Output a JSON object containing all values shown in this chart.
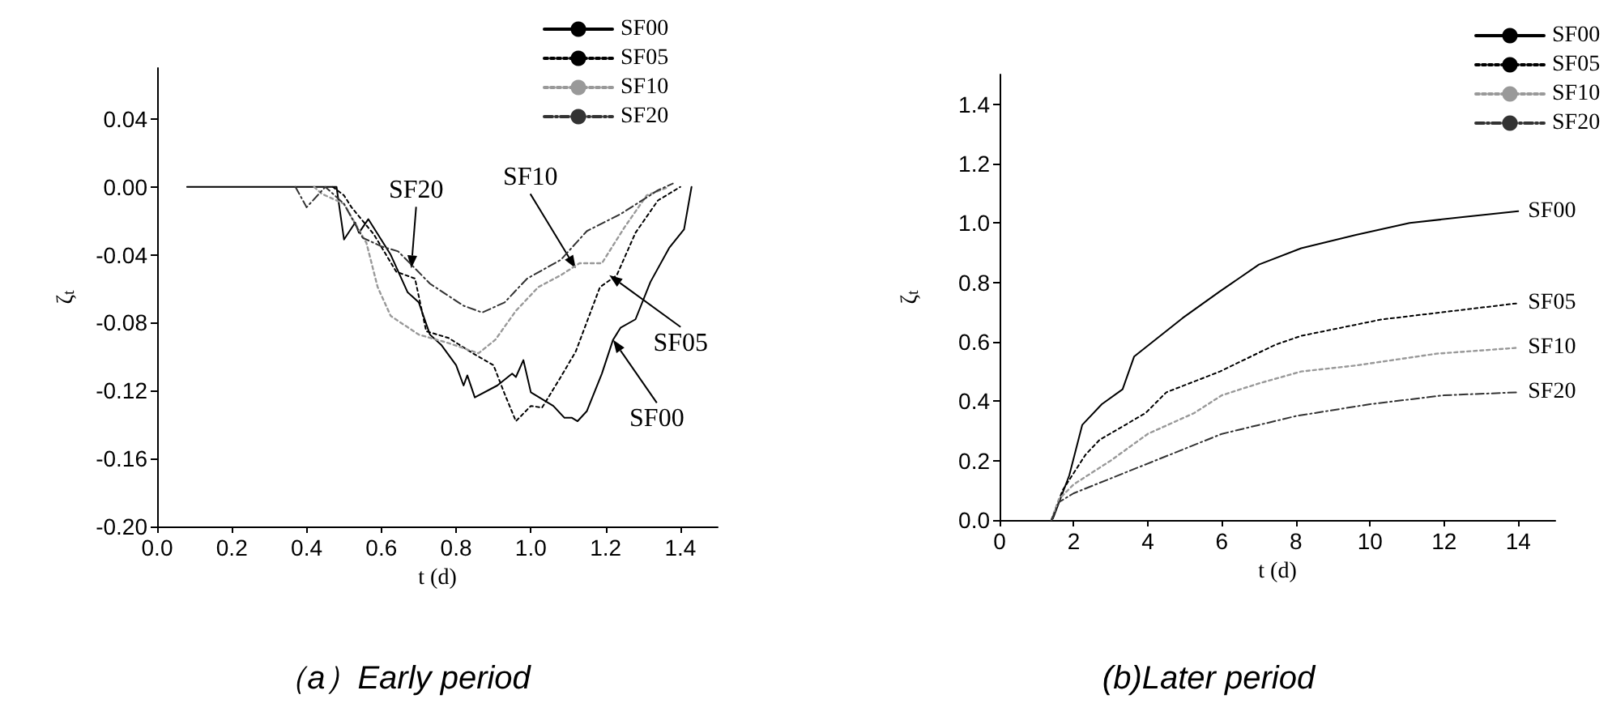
{
  "chart_data": [
    {
      "type": "line",
      "title": "（a）Early period",
      "xlabel": "t (d)",
      "ylabel": "ζ$_{t}$",
      "xlim": [
        0,
        1.5
      ],
      "ylim": [
        -0.2,
        0.07
      ],
      "xticks": [
        {
          "value": 0,
          "label": "0.0"
        },
        {
          "value": 0.2,
          "label": "0.2"
        },
        {
          "value": 0.4,
          "label": "0.4"
        },
        {
          "value": 0.6,
          "label": "0.6"
        },
        {
          "value": 0.8,
          "label": "0.8"
        },
        {
          "value": 1,
          "label": "1.0"
        },
        {
          "value": 1.2,
          "label": "1.2"
        },
        {
          "value": 1.4,
          "label": "1.4"
        }
      ],
      "yticks": [
        {
          "value": -0.2,
          "label": "-0.20"
        },
        {
          "value": -0.16,
          "label": "-0.16"
        },
        {
          "value": -0.12,
          "label": "-0.12"
        },
        {
          "value": -0.08,
          "label": "-0.08"
        },
        {
          "value": -0.04,
          "label": "-0.04"
        },
        {
          "value": 0,
          "label": "0.00"
        },
        {
          "value": 0.04,
          "label": "0.04"
        }
      ],
      "grid": false,
      "legend": "top right",
      "marker": "none",
      "series": [
        {
          "name": "SF00",
          "color": "#000000",
          "line_style": "solid",
          "x": [
            0.08,
            0.48,
            0.5,
            0.53,
            0.54,
            0.565,
            0.625,
            0.67,
            0.7,
            0.73,
            0.76,
            0.8,
            0.82,
            0.83,
            0.85,
            0.91,
            0.95,
            0.96,
            0.98,
            1.0,
            1.06,
            1.09,
            1.11,
            1.125,
            1.15,
            1.19,
            1.22,
            1.24,
            1.28,
            1.32,
            1.37,
            1.41,
            1.43
          ],
          "values": [
            0,
            0,
            -0.031,
            -0.021,
            -0.027,
            -0.019,
            -0.04,
            -0.062,
            -0.068,
            -0.087,
            -0.093,
            -0.105,
            -0.117,
            -0.111,
            -0.124,
            -0.117,
            -0.11,
            -0.112,
            -0.102,
            -0.121,
            -0.129,
            -0.136,
            -0.136,
            -0.138,
            -0.132,
            -0.11,
            -0.09,
            -0.083,
            -0.078,
            -0.056,
            -0.036,
            -0.025,
            0
          ]
        },
        {
          "name": "SF05",
          "color": "#000000",
          "line_style": "dotted",
          "x": [
            0.47,
            0.5,
            0.52,
            0.58,
            0.64,
            0.69,
            0.72,
            0.78,
            0.845,
            0.9,
            0.93,
            0.96,
            1.0,
            1.03,
            1.08,
            1.12,
            1.185,
            1.23,
            1.28,
            1.34,
            1.4
          ],
          "values": [
            0,
            -0.005,
            -0.012,
            -0.028,
            -0.05,
            -0.054,
            -0.085,
            -0.089,
            -0.098,
            -0.105,
            -0.122,
            -0.138,
            -0.129,
            -0.13,
            -0.112,
            -0.097,
            -0.059,
            -0.052,
            -0.027,
            -0.008,
            0
          ]
        },
        {
          "name": "SF10",
          "color": "#999999",
          "line_style": "dotted",
          "x": [
            0.42,
            0.44,
            0.5,
            0.56,
            0.59,
            0.625,
            0.7,
            0.78,
            0.82,
            0.86,
            0.905,
            0.96,
            1.02,
            1.08,
            1.13,
            1.19,
            1.25,
            1.31,
            1.37
          ],
          "values": [
            0,
            -0.004,
            -0.01,
            -0.033,
            -0.059,
            -0.076,
            -0.087,
            -0.092,
            -0.095,
            -0.098,
            -0.09,
            -0.073,
            -0.059,
            -0.052,
            -0.045,
            -0.045,
            -0.024,
            -0.005,
            0
          ]
        },
        {
          "name": "SF20",
          "color": "#333333",
          "line_style": "dashed",
          "x": [
            0.37,
            0.4,
            0.45,
            0.5,
            0.55,
            0.6,
            0.645,
            0.69,
            0.73,
            0.82,
            0.87,
            0.93,
            0.99,
            1.08,
            1.15,
            1.24,
            1.34,
            1.38
          ],
          "values": [
            0,
            -0.012,
            0,
            -0.01,
            -0.03,
            -0.035,
            -0.038,
            -0.048,
            -0.057,
            -0.07,
            -0.074,
            -0.068,
            -0.054,
            -0.043,
            -0.026,
            -0.016,
            -0.002,
            0.002
          ]
        }
      ],
      "annotations": [
        {
          "text": "SF20",
          "x": 0.68,
          "y": -0.048
        },
        {
          "text": "SF10",
          "x": 1.12,
          "y": -0.048
        },
        {
          "text": "SF05",
          "x": 1.21,
          "y": -0.052
        },
        {
          "text": "SF00",
          "x": 1.22,
          "y": -0.09
        }
      ]
    },
    {
      "type": "line",
      "title": "(b)Later period",
      "xlabel": "t (d)",
      "ylabel": "ζ$_{t}$",
      "xlim": [
        0,
        15
      ],
      "ylim": [
        0,
        1.5
      ],
      "xticks": [
        0,
        2,
        4,
        6,
        8,
        10,
        12,
        14
      ],
      "yticks": [
        {
          "value": 0,
          "label": "0.0"
        },
        {
          "value": 0.2,
          "label": "0.2"
        },
        {
          "value": 0.4,
          "label": "0.4"
        },
        {
          "value": 0.6,
          "label": "0.6"
        },
        {
          "value": 0.8,
          "label": "0.8"
        },
        {
          "value": 1,
          "label": "1.0"
        },
        {
          "value": 1.2,
          "label": "1.2"
        },
        {
          "value": 1.4,
          "label": "1.4"
        }
      ],
      "grid": false,
      "legend": "top right",
      "marker": "none",
      "series": [
        {
          "name": "SF00",
          "color": "#000000",
          "line_style": "solid",
          "x": [
            1.4,
            1.44,
            1.88,
            2.23,
            2.76,
            3.32,
            3.63,
            4.94,
            5.95,
            7.0,
            8.14,
            9.62,
            11.07,
            12.5,
            14.0
          ],
          "values": [
            0,
            0.005,
            0.15,
            0.32,
            0.39,
            0.44,
            0.55,
            0.68,
            0.77,
            0.86,
            0.915,
            0.96,
            1.0,
            1.02,
            1.04
          ]
        },
        {
          "name": "SF05",
          "color": "#000000",
          "line_style": "dotted",
          "x": [
            1.4,
            1.7,
            2.32,
            2.7,
            3.94,
            4.5,
            5.95,
            7.44,
            8.14,
            10.3,
            14.0
          ],
          "values": [
            0,
            0.1,
            0.22,
            0.27,
            0.36,
            0.43,
            0.5,
            0.59,
            0.62,
            0.675,
            0.73
          ]
        },
        {
          "name": "SF10",
          "color": "#999999",
          "line_style": "dotted",
          "x": [
            1.4,
            1.6,
            2.0,
            3.0,
            4.0,
            5.25,
            6.0,
            7.0,
            8.14,
            9.6,
            11.8,
            14.0
          ],
          "values": [
            0,
            0.07,
            0.12,
            0.2,
            0.29,
            0.36,
            0.42,
            0.46,
            0.5,
            0.52,
            0.56,
            0.58
          ]
        },
        {
          "name": "SF20",
          "color": "#333333",
          "line_style": "dashed",
          "x": [
            1.4,
            1.6,
            2.0,
            3.0,
            4.0,
            5.0,
            6.0,
            7.0,
            8.0,
            10.0,
            12.0,
            14.0
          ],
          "values": [
            0,
            0.06,
            0.09,
            0.14,
            0.19,
            0.24,
            0.29,
            0.32,
            0.35,
            0.39,
            0.42,
            0.43
          ]
        }
      ]
    }
  ]
}
